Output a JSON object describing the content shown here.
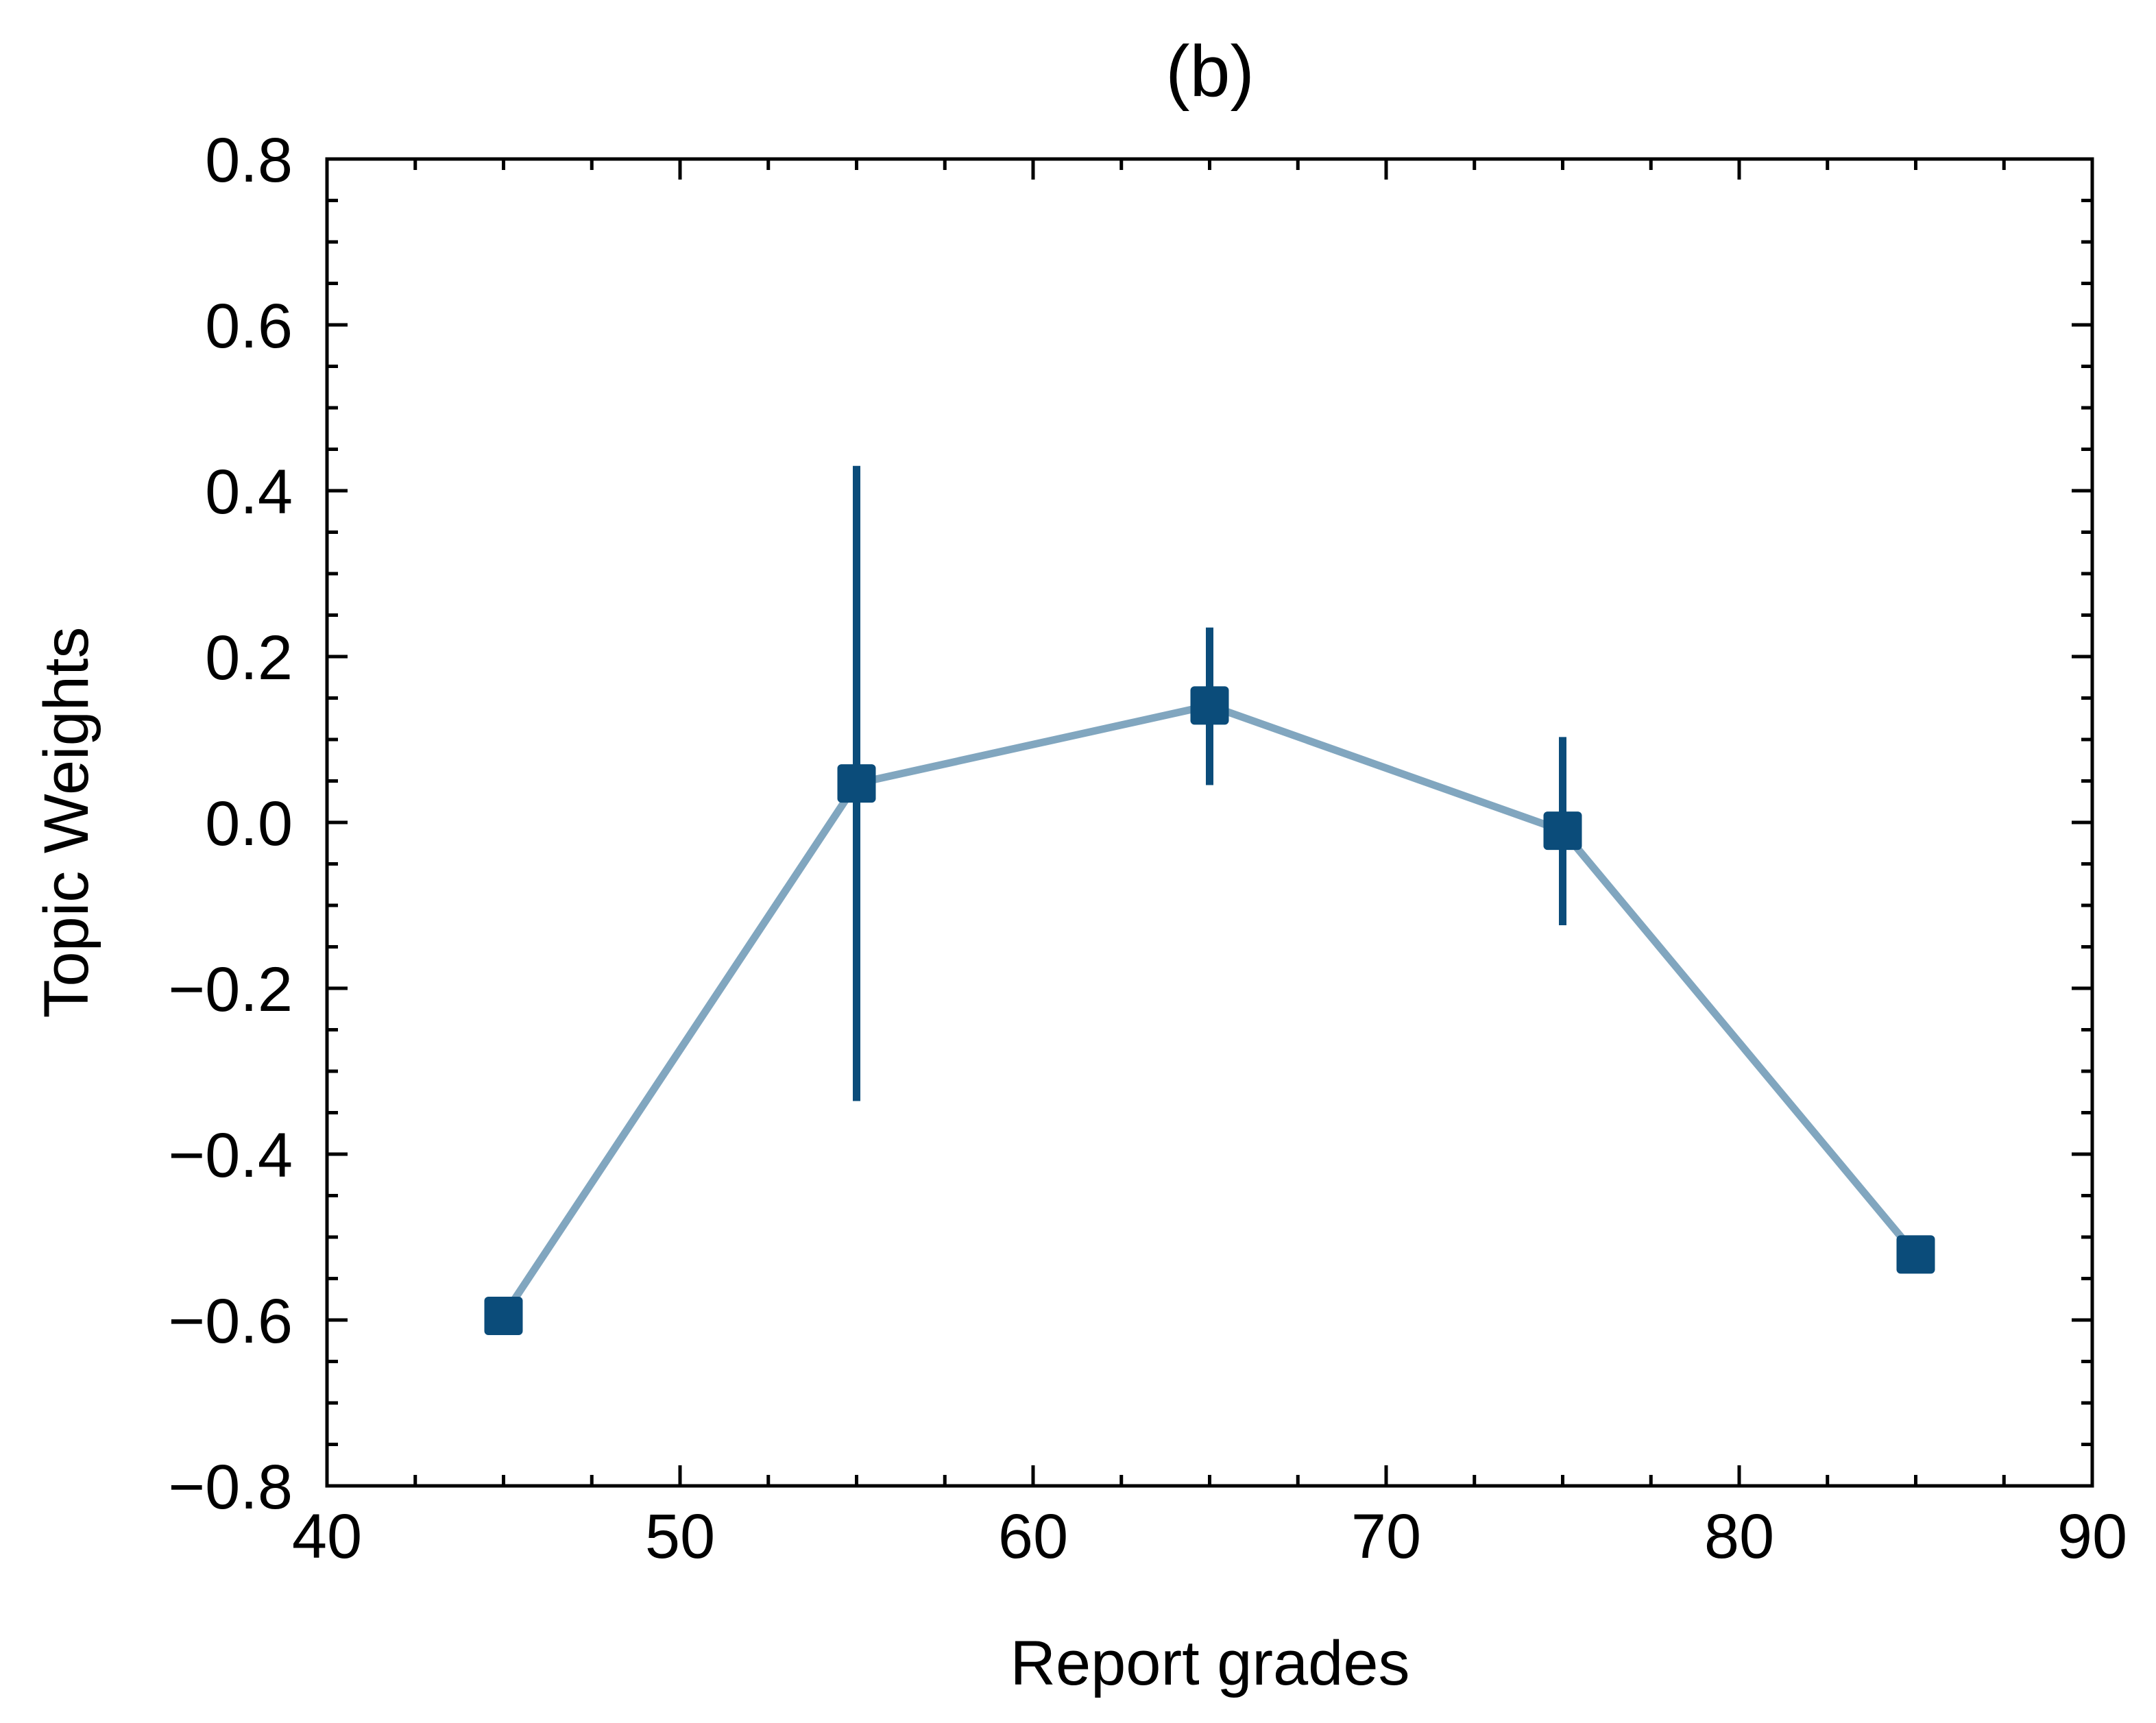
{
  "chart_data": {
    "type": "line",
    "title": "(b)",
    "xlabel": "Report grades",
    "ylabel": "Topic Weights",
    "xlim": [
      40,
      90
    ],
    "ylim": [
      -0.8,
      0.8
    ],
    "xticks": [
      40,
      50,
      60,
      70,
      80,
      90
    ],
    "xtick_labels": [
      "40",
      "50",
      "60",
      "70",
      "80",
      "90"
    ],
    "yticks": [
      -0.8,
      -0.6,
      -0.4,
      -0.2,
      0.0,
      0.2,
      0.4,
      0.6,
      0.8
    ],
    "ytick_labels": [
      "−0.8",
      "−0.6",
      "−0.4",
      "−0.2",
      "0.0",
      "0.2",
      "0.4",
      "0.6",
      "0.8"
    ],
    "grid": false,
    "series": [
      {
        "x": [
          45,
          55,
          65,
          75,
          85
        ],
        "y": [
          -0.595,
          0.047,
          0.141,
          -0.01,
          -0.521
        ],
        "yerr_low": [
          null,
          -0.336,
          0.045,
          -0.124,
          null
        ],
        "yerr_high": [
          null,
          0.43,
          0.235,
          0.103,
          null
        ],
        "line_color": "#81a6bf",
        "marker_color": "#0b4c7a",
        "marker": "square"
      }
    ]
  }
}
